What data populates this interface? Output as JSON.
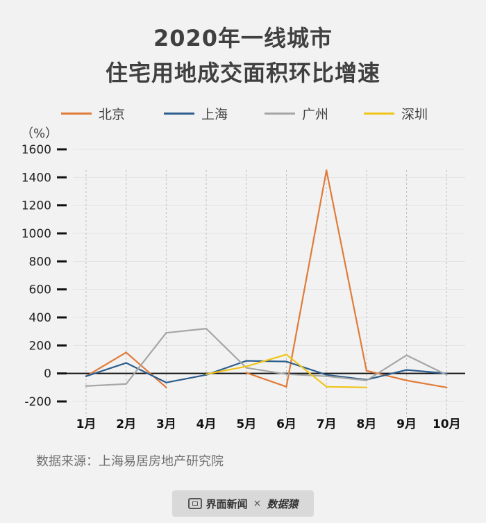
{
  "title_line1": "2020年一线城市",
  "title_line2": "住宅用地成交面积环比增速",
  "unit_label": "（%）",
  "source": "数据来源：上海易居房地产研究院",
  "footer": {
    "brand": "界面新闻",
    "separator": "×",
    "partner": "数据猿"
  },
  "chart_data": {
    "type": "line",
    "title": "2020年一线城市住宅用地成交面积环比增速",
    "ylabel": "（%）",
    "ylim": [
      -200,
      1600
    ],
    "yticks": [
      -200,
      0,
      200,
      400,
      600,
      800,
      1000,
      1200,
      1400,
      1600
    ],
    "categories": [
      "1月",
      "2月",
      "3月",
      "4月",
      "5月",
      "6月",
      "7月",
      "8月",
      "9月",
      "10月"
    ],
    "grid": true,
    "legend": "top",
    "series": [
      {
        "name": "北京",
        "color": "#e07b39",
        "values": [
          -20,
          150,
          -100,
          null,
          5,
          -95,
          1450,
          20,
          -50,
          -100
        ]
      },
      {
        "name": "上海",
        "color": "#2e5e8e",
        "values": [
          -20,
          75,
          -65,
          -10,
          90,
          85,
          -10,
          -45,
          25,
          0
        ]
      },
      {
        "name": "广州",
        "color": "#a6a6a6",
        "values": [
          -90,
          -75,
          290,
          320,
          40,
          -5,
          -20,
          -50,
          130,
          -10
        ]
      },
      {
        "name": "深圳",
        "color": "#f0c419",
        "values": [
          null,
          null,
          null,
          -5,
          50,
          135,
          -95,
          -100,
          null,
          null
        ]
      }
    ]
  }
}
